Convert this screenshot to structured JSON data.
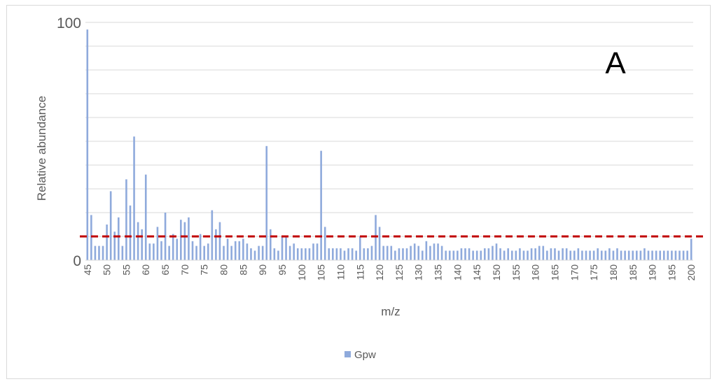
{
  "chart_data": {
    "type": "bar",
    "title": "",
    "panel_label": "A",
    "xlabel": "m/z",
    "ylabel": "Relative abundance",
    "ylim": [
      0,
      100
    ],
    "y_tick_labels": [
      "0",
      "100"
    ],
    "grid": true,
    "legend_position": "bottom",
    "threshold": {
      "value": 10,
      "color": "#c00000",
      "style": "dashed"
    },
    "series": [
      {
        "name": "Gpw",
        "color": "#8faadc",
        "x": [
          45,
          46,
          47,
          48,
          49,
          50,
          51,
          52,
          53,
          54,
          55,
          56,
          57,
          58,
          59,
          60,
          61,
          62,
          63,
          64,
          65,
          66,
          67,
          68,
          69,
          70,
          71,
          72,
          73,
          74,
          75,
          76,
          77,
          78,
          79,
          80,
          81,
          82,
          83,
          84,
          85,
          86,
          87,
          88,
          89,
          90,
          91,
          92,
          93,
          94,
          95,
          96,
          97,
          98,
          99,
          100,
          101,
          102,
          103,
          104,
          105,
          106,
          107,
          108,
          109,
          110,
          111,
          112,
          113,
          114,
          115,
          116,
          117,
          118,
          119,
          120,
          121,
          122,
          123,
          124,
          125,
          126,
          127,
          128,
          129,
          130,
          131,
          132,
          133,
          134,
          135,
          136,
          137,
          138,
          139,
          140,
          141,
          142,
          143,
          144,
          145,
          146,
          147,
          148,
          149,
          150,
          151,
          152,
          153,
          154,
          155,
          156,
          157,
          158,
          159,
          160,
          161,
          162,
          163,
          164,
          165,
          166,
          167,
          168,
          169,
          170,
          171,
          172,
          173,
          174,
          175,
          176,
          177,
          178,
          179,
          180,
          181,
          182,
          183,
          184,
          185,
          186,
          187,
          188,
          189,
          190,
          191,
          192,
          193,
          194,
          195,
          196,
          197,
          198,
          199,
          200
        ],
        "values": [
          97,
          19,
          6,
          6,
          6,
          15,
          29,
          12,
          18,
          6,
          34,
          23,
          52,
          16,
          13,
          36,
          7,
          7,
          14,
          8,
          20,
          6,
          11,
          9,
          17,
          16,
          18,
          8,
          6,
          11,
          6,
          7,
          21,
          13,
          16,
          6,
          9,
          6,
          8,
          8,
          9,
          7,
          5,
          4,
          6,
          6,
          48,
          13,
          5,
          4,
          10,
          10,
          6,
          7,
          5,
          5,
          5,
          5,
          7,
          7,
          46,
          14,
          5,
          5,
          5,
          5,
          4,
          5,
          5,
          4,
          10,
          5,
          5,
          6,
          19,
          14,
          6,
          6,
          6,
          4,
          5,
          5,
          5,
          6,
          7,
          6,
          4,
          8,
          6,
          7,
          7,
          6,
          4,
          4,
          4,
          4,
          5,
          5,
          5,
          4,
          4,
          4,
          5,
          5,
          6,
          7,
          5,
          4,
          5,
          4,
          4,
          5,
          4,
          4,
          5,
          5,
          6,
          6,
          4,
          5,
          5,
          4,
          5,
          5,
          4,
          4,
          5,
          4,
          4,
          4,
          4,
          5,
          4,
          4,
          5,
          4,
          5,
          4,
          4,
          4,
          4,
          4,
          4,
          5,
          4,
          4,
          4,
          4,
          4,
          4,
          4,
          4,
          4,
          4,
          4,
          9
        ]
      }
    ],
    "x_tick_labels": [
      "45",
      "50",
      "55",
      "60",
      "65",
      "70",
      "75",
      "80",
      "85",
      "90",
      "95",
      "100",
      "105",
      "110",
      "115",
      "120",
      "125",
      "130",
      "135",
      "140",
      "145",
      "150",
      "155",
      "160",
      "165",
      "170",
      "175",
      "180",
      "185",
      "190",
      "195",
      "200"
    ]
  }
}
